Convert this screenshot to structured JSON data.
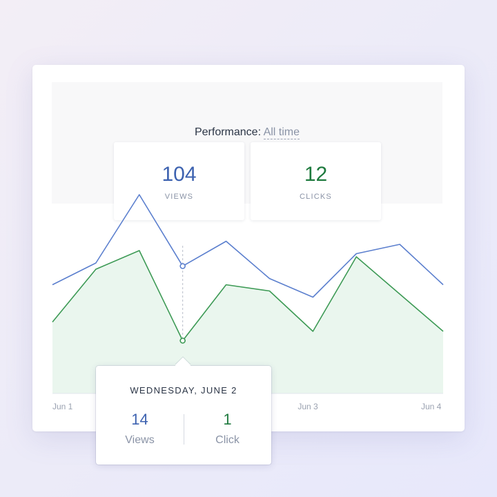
{
  "header": {
    "label": "Performance:",
    "range_value": "All time"
  },
  "stats": {
    "views": {
      "value": "104",
      "label": "VIEWS"
    },
    "clicks": {
      "value": "12",
      "label": "CLICKS"
    }
  },
  "chart_data": {
    "type": "line",
    "x": [
      0,
      1,
      2,
      3,
      4,
      5,
      6,
      7,
      8,
      9
    ],
    "x_tick_labels": [
      {
        "x": 0,
        "label": "Jun 1"
      },
      {
        "x": 6,
        "label": "Jun 3"
      },
      {
        "x": 9,
        "label": "Jun 4"
      }
    ],
    "series": [
      {
        "name": "Views",
        "color": "#5b7fce",
        "values": [
          17.5,
          21,
          32,
          20.5,
          24.5,
          18.5,
          15.5,
          22.5,
          24,
          17.5
        ]
      },
      {
        "name": "Clicks",
        "color": "#3d9a55",
        "fill": "#eaf6ee",
        "values": [
          11.5,
          20,
          23,
          8.5,
          17.5,
          16.5,
          10,
          22,
          16,
          10
        ]
      }
    ],
    "ylim": [
      0,
      34
    ],
    "highlight_index": 3,
    "grid": false
  },
  "tooltip": {
    "date": "WEDNESDAY, JUNE 2",
    "views_value": "14",
    "views_label": "Views",
    "clicks_value": "1",
    "clicks_label": "Click"
  },
  "colors": {
    "views": "#3d62b0",
    "clicks": "#1e7a3e",
    "muted": "#8a93a6"
  }
}
